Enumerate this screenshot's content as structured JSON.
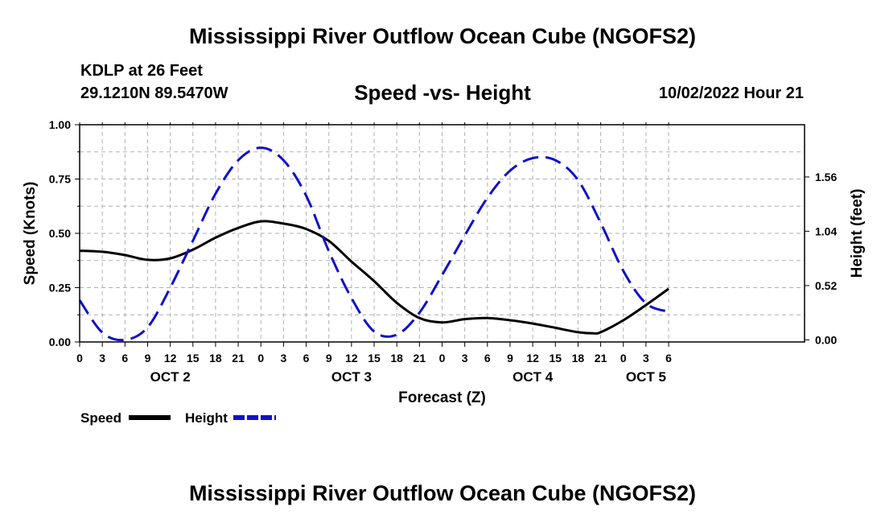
{
  "header": {
    "title": "Mississippi River Outflow Ocean Cube (NGOFS2)",
    "station": "KDLP at 26 Feet",
    "coordinates": "29.1210N  89.5470W",
    "subtitle": "Speed -vs- Height",
    "datetime": "10/02/2022 Hour 21"
  },
  "footer": {
    "title": "Mississippi River Outflow Ocean Cube (NGOFS2)"
  },
  "colors": {
    "speed": "#000000",
    "height": "#1010cc",
    "grid": "#b0b0b0"
  },
  "chart_data": {
    "type": "line",
    "title": "Speed -vs- Height",
    "xlabel": "Forecast (Z)",
    "ylabel": "Speed (Knots)",
    "y2label": "Height (feet)",
    "x_range_hours": [
      0,
      96
    ],
    "x_ticks": [
      {
        "hour": 0,
        "label": "0"
      },
      {
        "hour": 3,
        "label": "3"
      },
      {
        "hour": 6,
        "label": "6"
      },
      {
        "hour": 9,
        "label": "9"
      },
      {
        "hour": 12,
        "label": "12"
      },
      {
        "hour": 15,
        "label": "15"
      },
      {
        "hour": 18,
        "label": "18"
      },
      {
        "hour": 21,
        "label": "21"
      },
      {
        "hour": 24,
        "label": "0"
      },
      {
        "hour": 27,
        "label": "3"
      },
      {
        "hour": 30,
        "label": "6"
      },
      {
        "hour": 33,
        "label": "9"
      },
      {
        "hour": 36,
        "label": "12"
      },
      {
        "hour": 39,
        "label": "15"
      },
      {
        "hour": 42,
        "label": "18"
      },
      {
        "hour": 45,
        "label": "21"
      },
      {
        "hour": 48,
        "label": "0"
      },
      {
        "hour": 51,
        "label": "3"
      },
      {
        "hour": 54,
        "label": "6"
      },
      {
        "hour": 57,
        "label": "9"
      },
      {
        "hour": 60,
        "label": "12"
      },
      {
        "hour": 63,
        "label": "15"
      },
      {
        "hour": 66,
        "label": "18"
      },
      {
        "hour": 69,
        "label": "21"
      },
      {
        "hour": 72,
        "label": "0"
      },
      {
        "hour": 75,
        "label": "3"
      },
      {
        "hour": 78,
        "label": "6"
      }
    ],
    "day_labels": [
      {
        "hour": 12,
        "label": "OCT 2"
      },
      {
        "hour": 36,
        "label": "OCT 3"
      },
      {
        "hour": 60,
        "label": "OCT 4"
      },
      {
        "hour": 75,
        "label": "OCT 5"
      }
    ],
    "ylim": [
      0,
      1.0
    ],
    "y_ticks": [
      "0.00",
      "0.25",
      "0.50",
      "0.75",
      "1.00"
    ],
    "y2lim": [
      -0.02,
      2.06
    ],
    "y2_ticks": [
      "0.00",
      "0.52",
      "1.04",
      "1.56"
    ],
    "series": [
      {
        "name": "Speed",
        "axis": "left",
        "style": "solid",
        "points": [
          [
            0,
            0.42
          ],
          [
            3,
            0.415
          ],
          [
            6,
            0.4
          ],
          [
            9,
            0.378
          ],
          [
            12,
            0.385
          ],
          [
            15,
            0.425
          ],
          [
            18,
            0.48
          ],
          [
            21,
            0.525
          ],
          [
            24,
            0.555
          ],
          [
            27,
            0.545
          ],
          [
            30,
            0.52
          ],
          [
            33,
            0.465
          ],
          [
            36,
            0.37
          ],
          [
            39,
            0.28
          ],
          [
            42,
            0.18
          ],
          [
            45,
            0.11
          ],
          [
            48,
            0.09
          ],
          [
            51,
            0.105
          ],
          [
            54,
            0.11
          ],
          [
            57,
            0.1
          ],
          [
            60,
            0.085
          ],
          [
            63,
            0.065
          ],
          [
            66,
            0.045
          ],
          [
            68,
            0.04
          ],
          [
            69,
            0.045
          ],
          [
            72,
            0.1
          ],
          [
            75,
            0.17
          ],
          [
            78,
            0.245
          ]
        ]
      },
      {
        "name": "Height",
        "axis": "right",
        "style": "dashed",
        "points": [
          [
            0,
            0.38
          ],
          [
            3,
            0.07
          ],
          [
            6,
            0.0
          ],
          [
            9,
            0.12
          ],
          [
            12,
            0.5
          ],
          [
            15,
            0.95
          ],
          [
            18,
            1.4
          ],
          [
            21,
            1.72
          ],
          [
            24,
            1.84
          ],
          [
            27,
            1.72
          ],
          [
            30,
            1.38
          ],
          [
            33,
            0.85
          ],
          [
            36,
            0.4
          ],
          [
            39,
            0.08
          ],
          [
            42,
            0.05
          ],
          [
            45,
            0.26
          ],
          [
            48,
            0.62
          ],
          [
            51,
            1.0
          ],
          [
            54,
            1.36
          ],
          [
            57,
            1.62
          ],
          [
            60,
            1.74
          ],
          [
            63,
            1.72
          ],
          [
            66,
            1.53
          ],
          [
            69,
            1.12
          ],
          [
            72,
            0.66
          ],
          [
            75,
            0.35
          ],
          [
            78,
            0.27
          ]
        ]
      }
    ],
    "legend": [
      {
        "name": "Speed",
        "label": "Speed"
      },
      {
        "name": "Height",
        "label": "Height"
      }
    ],
    "legend_position": "bottom-left"
  }
}
